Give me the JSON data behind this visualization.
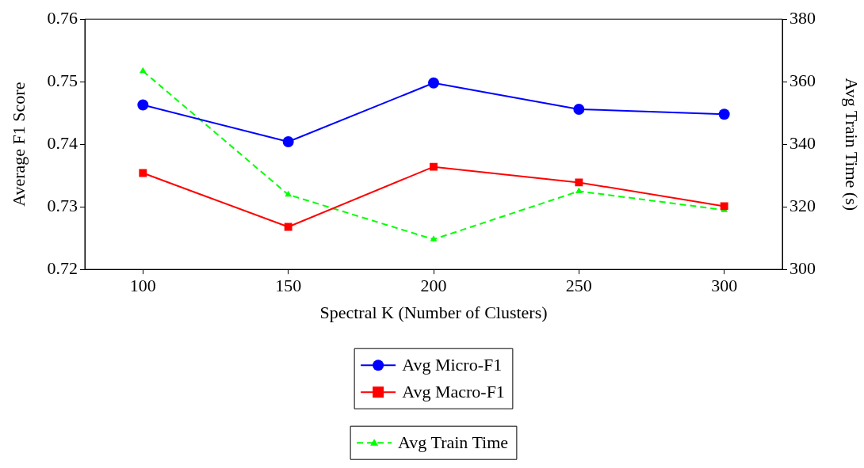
{
  "chart_data": {
    "type": "line",
    "xlabel": "Spectral K (Number of Clusters)",
    "ylabel": "Average F1 Score",
    "y2label": "Avg Train Time (s)",
    "x": [
      100,
      150,
      200,
      250,
      300
    ],
    "xlim": [
      80,
      320
    ],
    "xticks": [
      100,
      150,
      200,
      250,
      300
    ],
    "ylim": [
      0.72,
      0.76
    ],
    "yticks": [
      {
        "value": 0.72,
        "label": "0.72"
      },
      {
        "value": 0.73,
        "label": "0.73"
      },
      {
        "value": 0.74,
        "label": "0.74"
      },
      {
        "value": 0.75,
        "label": "0.75"
      },
      {
        "value": 0.76,
        "label": "0.76"
      }
    ],
    "y2lim": [
      300,
      380
    ],
    "y2ticks": [
      300,
      320,
      340,
      360,
      380
    ],
    "grid": false,
    "legend": "bottom",
    "series": [
      {
        "name": "Avg Micro-F1",
        "color": "#0000ff",
        "values": [
          0.7463,
          0.7404,
          0.7498,
          0.7456,
          0.7448
        ],
        "marker": "circle",
        "line_style": "solid"
      },
      {
        "name": "Avg Macro-F1",
        "color": "#ff0000",
        "values": [
          0.7354,
          0.7268,
          0.7364,
          0.7339,
          0.7301
        ],
        "marker": "square",
        "line_style": "solid"
      },
      {
        "name": "Avg Train Time",
        "color": "#00ff00",
        "values": [
          363.4,
          323.9,
          309.6,
          325.0,
          319.0
        ],
        "marker": "triangle",
        "line_style": "dashed",
        "axis": "y2"
      }
    ]
  }
}
